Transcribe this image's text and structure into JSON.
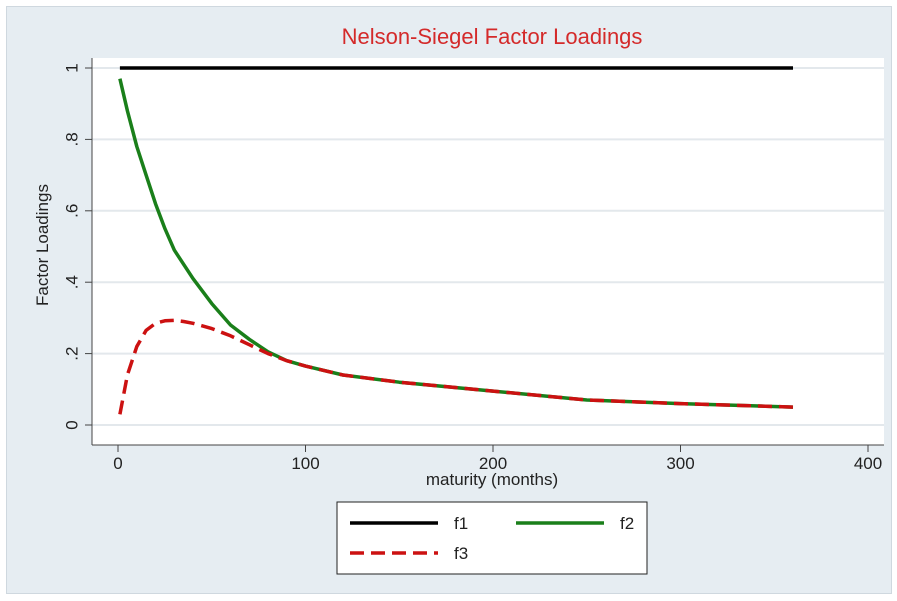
{
  "chart_data": {
    "type": "line",
    "title": "Nelson-Siegel Factor Loadings",
    "xlabel": "maturity (months)",
    "ylabel": "Factor Loadings",
    "xlim": [
      0,
      400
    ],
    "ylim": [
      0,
      1
    ],
    "x_ticks": [
      0,
      100,
      200,
      300,
      400
    ],
    "x_tick_labels": [
      "0",
      "100",
      "200",
      "300",
      "400"
    ],
    "y_ticks": [
      0,
      0.2,
      0.4,
      0.6,
      0.8,
      1
    ],
    "y_tick_labels": [
      "0",
      ".2",
      ".4",
      ".6",
      ".8",
      "1"
    ],
    "grid": "horizontal",
    "legend_position": "bottom",
    "series": [
      {
        "name": "f1",
        "color": "#000000",
        "dash": "solid",
        "x": [
          1,
          360
        ],
        "y": [
          1,
          1
        ]
      },
      {
        "name": "f2",
        "color": "#1a7f1a",
        "dash": "solid",
        "x": [
          1,
          5,
          10,
          15,
          20,
          25,
          30,
          40,
          50,
          60,
          70,
          80,
          90,
          100,
          120,
          150,
          200,
          250,
          300,
          360
        ],
        "y": [
          0.97,
          0.88,
          0.78,
          0.7,
          0.62,
          0.55,
          0.49,
          0.41,
          0.34,
          0.28,
          0.24,
          0.205,
          0.18,
          0.165,
          0.14,
          0.12,
          0.095,
          0.07,
          0.06,
          0.05
        ]
      },
      {
        "name": "f3",
        "color": "#cc1111",
        "dash": "dashed",
        "x": [
          1,
          5,
          10,
          15,
          20,
          25,
          30,
          35,
          40,
          50,
          60,
          70,
          80,
          90,
          100,
          120,
          150,
          200,
          250,
          300,
          360
        ],
        "y": [
          0.03,
          0.14,
          0.22,
          0.265,
          0.285,
          0.292,
          0.293,
          0.29,
          0.285,
          0.27,
          0.25,
          0.225,
          0.2,
          0.18,
          0.165,
          0.14,
          0.12,
          0.095,
          0.07,
          0.06,
          0.05
        ]
      }
    ]
  }
}
